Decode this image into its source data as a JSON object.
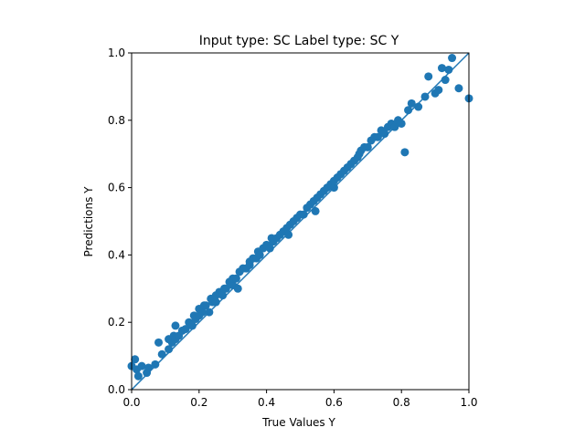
{
  "chart_data": {
    "type": "scatter",
    "title": "Input type: SC Label type: SC    Y",
    "xlabel": "True Values Y",
    "ylabel": "Predictions Y",
    "xlim": [
      0.0,
      1.0
    ],
    "ylim": [
      0.0,
      1.0
    ],
    "xticks": [
      "0.0",
      "0.2",
      "0.4",
      "0.6",
      "0.8",
      "1.0"
    ],
    "yticks": [
      "0.0",
      "0.2",
      "0.4",
      "0.6",
      "0.8",
      "1.0"
    ],
    "grid": false,
    "reference_line": {
      "from": [
        0,
        0
      ],
      "to": [
        1,
        1
      ]
    },
    "colors": {
      "points": "#1f77b4",
      "line": "#1f77b4"
    },
    "series": [
      {
        "name": "predictions",
        "points": [
          [
            0.0,
            0.07
          ],
          [
            0.01,
            0.09
          ],
          [
            0.015,
            0.06
          ],
          [
            0.02,
            0.04
          ],
          [
            0.03,
            0.07
          ],
          [
            0.045,
            0.05
          ],
          [
            0.05,
            0.065
          ],
          [
            0.07,
            0.075
          ],
          [
            0.08,
            0.14
          ],
          [
            0.09,
            0.105
          ],
          [
            0.11,
            0.12
          ],
          [
            0.11,
            0.15
          ],
          [
            0.12,
            0.14
          ],
          [
            0.125,
            0.16
          ],
          [
            0.13,
            0.15
          ],
          [
            0.13,
            0.19
          ],
          [
            0.14,
            0.16
          ],
          [
            0.15,
            0.175
          ],
          [
            0.16,
            0.18
          ],
          [
            0.17,
            0.2
          ],
          [
            0.18,
            0.19
          ],
          [
            0.185,
            0.22
          ],
          [
            0.19,
            0.21
          ],
          [
            0.2,
            0.22
          ],
          [
            0.2,
            0.24
          ],
          [
            0.21,
            0.23
          ],
          [
            0.215,
            0.25
          ],
          [
            0.22,
            0.25
          ],
          [
            0.23,
            0.23
          ],
          [
            0.235,
            0.27
          ],
          [
            0.24,
            0.26
          ],
          [
            0.25,
            0.28
          ],
          [
            0.25,
            0.26
          ],
          [
            0.26,
            0.29
          ],
          [
            0.27,
            0.28
          ],
          [
            0.275,
            0.3
          ],
          [
            0.28,
            0.3
          ],
          [
            0.29,
            0.32
          ],
          [
            0.3,
            0.31
          ],
          [
            0.3,
            0.33
          ],
          [
            0.31,
            0.33
          ],
          [
            0.315,
            0.3
          ],
          [
            0.32,
            0.35
          ],
          [
            0.33,
            0.36
          ],
          [
            0.34,
            0.36
          ],
          [
            0.35,
            0.37
          ],
          [
            0.35,
            0.38
          ],
          [
            0.36,
            0.39
          ],
          [
            0.37,
            0.39
          ],
          [
            0.375,
            0.41
          ],
          [
            0.38,
            0.4
          ],
          [
            0.39,
            0.42
          ],
          [
            0.4,
            0.43
          ],
          [
            0.41,
            0.42
          ],
          [
            0.415,
            0.45
          ],
          [
            0.42,
            0.44
          ],
          [
            0.43,
            0.45
          ],
          [
            0.44,
            0.46
          ],
          [
            0.45,
            0.47
          ],
          [
            0.46,
            0.48
          ],
          [
            0.465,
            0.46
          ],
          [
            0.47,
            0.49
          ],
          [
            0.48,
            0.5
          ],
          [
            0.49,
            0.51
          ],
          [
            0.5,
            0.52
          ],
          [
            0.51,
            0.52
          ],
          [
            0.52,
            0.54
          ],
          [
            0.53,
            0.55
          ],
          [
            0.54,
            0.56
          ],
          [
            0.545,
            0.53
          ],
          [
            0.55,
            0.57
          ],
          [
            0.56,
            0.58
          ],
          [
            0.57,
            0.59
          ],
          [
            0.58,
            0.6
          ],
          [
            0.59,
            0.61
          ],
          [
            0.6,
            0.6
          ],
          [
            0.6,
            0.62
          ],
          [
            0.61,
            0.63
          ],
          [
            0.62,
            0.64
          ],
          [
            0.63,
            0.65
          ],
          [
            0.64,
            0.66
          ],
          [
            0.65,
            0.67
          ],
          [
            0.66,
            0.68
          ],
          [
            0.67,
            0.69
          ],
          [
            0.675,
            0.7
          ],
          [
            0.68,
            0.71
          ],
          [
            0.69,
            0.72
          ],
          [
            0.7,
            0.72
          ],
          [
            0.71,
            0.74
          ],
          [
            0.72,
            0.75
          ],
          [
            0.73,
            0.75
          ],
          [
            0.74,
            0.77
          ],
          [
            0.75,
            0.76
          ],
          [
            0.76,
            0.78
          ],
          [
            0.77,
            0.79
          ],
          [
            0.78,
            0.78
          ],
          [
            0.79,
            0.8
          ],
          [
            0.8,
            0.79
          ],
          [
            0.81,
            0.705
          ],
          [
            0.82,
            0.83
          ],
          [
            0.83,
            0.85
          ],
          [
            0.85,
            0.84
          ],
          [
            0.87,
            0.87
          ],
          [
            0.88,
            0.93
          ],
          [
            0.9,
            0.88
          ],
          [
            0.91,
            0.89
          ],
          [
            0.92,
            0.955
          ],
          [
            0.93,
            0.92
          ],
          [
            0.94,
            0.95
          ],
          [
            0.95,
            0.985
          ],
          [
            0.97,
            0.895
          ],
          [
            1.0,
            0.865
          ]
        ]
      }
    ]
  }
}
